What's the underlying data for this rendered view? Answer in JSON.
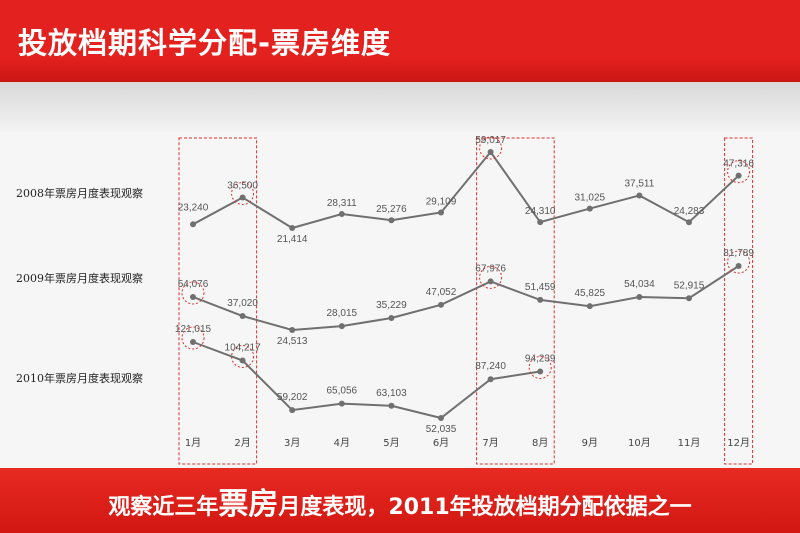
{
  "title": "投放档期科学分配-票房维度",
  "footer": {
    "part1": "观察近三年",
    "big1": "票",
    "big2": "房",
    "part2": "月度表现，2011年投放档期分配依据之一"
  },
  "colors": {
    "red": "#e3211e",
    "line": "#707070",
    "highlight": "#d9302c"
  },
  "chart_data": {
    "type": "line",
    "categories": [
      "1月",
      "2月",
      "3月",
      "4月",
      "5月",
      "6月",
      "7月",
      "8月",
      "9月",
      "10月",
      "11月",
      "12月"
    ],
    "highlighted_categories": [
      "1月",
      "2月",
      "7月",
      "8月",
      "12月"
    ],
    "series": [
      {
        "name": "2008年票房月度表现观察",
        "values": [
          23240,
          36500,
          21414,
          28311,
          25276,
          29109,
          59017,
          24310,
          31025,
          37511,
          24283,
          47316
        ],
        "labels": [
          "23,240",
          "36,500",
          "21,414",
          "28,311",
          "25,276",
          "29,109",
          "59,017",
          "24,310",
          "31,025",
          "37,511",
          "24,283",
          "47,316"
        ]
      },
      {
        "name": "2009年票房月度表现观察",
        "values": [
          54076,
          37020,
          24513,
          28015,
          35229,
          47052,
          67976,
          51459,
          45825,
          54034,
          52915,
          81789
        ],
        "labels": [
          "54,076",
          "37,020",
          "24,513",
          "28,015",
          "35,229",
          "47,052",
          "67,976",
          "51,459",
          "45,825",
          "54,034",
          "52,915",
          "81,789"
        ]
      },
      {
        "name": "2010年票房月度表现观察",
        "values": [
          121015,
          104217,
          59202,
          65056,
          63103,
          52035,
          87240,
          94239,
          null,
          null,
          null,
          null
        ],
        "labels": [
          "121,015",
          "104,217",
          "59,202",
          "65,056",
          "63,103",
          "52,035",
          "87,240",
          "94,239",
          null,
          null,
          null,
          null
        ]
      }
    ],
    "circled_points": [
      {
        "series": 0,
        "month": "2月"
      },
      {
        "series": 0,
        "month": "7月"
      },
      {
        "series": 0,
        "month": "12月"
      },
      {
        "series": 1,
        "month": "1月"
      },
      {
        "series": 1,
        "month": "7月"
      },
      {
        "series": 1,
        "month": "12月"
      },
      {
        "series": 2,
        "month": "1月"
      },
      {
        "series": 2,
        "month": "2月"
      },
      {
        "series": 2,
        "month": "8月"
      }
    ]
  }
}
